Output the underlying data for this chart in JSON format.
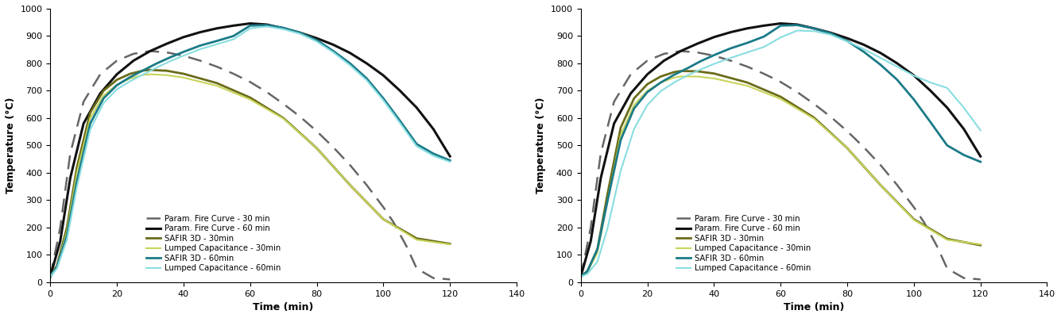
{
  "xlabel": "Time (min)",
  "ylabel": "Temperature (°C)",
  "xlim": [
    0,
    140
  ],
  "ylim": [
    0,
    1000
  ],
  "xticks": [
    0,
    20,
    40,
    60,
    80,
    100,
    120,
    140
  ],
  "yticks": [
    0,
    100,
    200,
    300,
    400,
    500,
    600,
    700,
    800,
    900,
    1000
  ],
  "colors": {
    "param_fire_30": "#666666",
    "param_fire_60": "#111111",
    "safir3d_30": "#6b6b1a",
    "lumped_30": "#c8d45a",
    "safir3d_60": "#1a7a88",
    "lumped_60_left": "#88dde0",
    "lumped_60_right": "#88dde0"
  },
  "legend_labels": [
    "Param. Fire Curve - 30 min",
    "Param. Fire Curve - 60 min",
    "SAFIR 3D - 30min",
    "Lumped Capacitance - 30min",
    "SAFIR 3D - 60min",
    "Lumped Capacitance - 60min"
  ],
  "param_fire_30_t": [
    0,
    3,
    6,
    10,
    15,
    20,
    25,
    30,
    35,
    40,
    45,
    50,
    55,
    60,
    65,
    70,
    75,
    80,
    85,
    90,
    95,
    100,
    103,
    107,
    110,
    115,
    120
  ],
  "param_fire_30_T": [
    20,
    200,
    470,
    660,
    760,
    810,
    835,
    845,
    840,
    828,
    810,
    788,
    762,
    732,
    695,
    652,
    605,
    552,
    493,
    428,
    355,
    274,
    220,
    130,
    50,
    15,
    10
  ],
  "param_fire_60_t": [
    0,
    3,
    6,
    10,
    15,
    20,
    25,
    30,
    35,
    40,
    45,
    50,
    55,
    60,
    65,
    70,
    75,
    80,
    85,
    90,
    95,
    100,
    105,
    110,
    115,
    120
  ],
  "param_fire_60_T": [
    20,
    150,
    380,
    580,
    690,
    760,
    810,
    845,
    872,
    896,
    914,
    928,
    938,
    946,
    942,
    928,
    912,
    892,
    868,
    838,
    800,
    756,
    700,
    638,
    560,
    460
  ],
  "safir3d_30_left_t": [
    0,
    2,
    5,
    8,
    12,
    16,
    20,
    24,
    28,
    30,
    35,
    40,
    50,
    60,
    70,
    80,
    90,
    100,
    110,
    120
  ],
  "safir3d_30_left_T": [
    20,
    60,
    200,
    420,
    620,
    700,
    740,
    762,
    774,
    776,
    773,
    762,
    728,
    675,
    600,
    490,
    355,
    230,
    160,
    140
  ],
  "lumped_30_left_t": [
    0,
    2,
    5,
    8,
    12,
    16,
    20,
    24,
    28,
    30,
    35,
    40,
    50,
    60,
    70,
    80,
    90,
    100,
    110,
    120
  ],
  "lumped_30_left_T": [
    20,
    55,
    185,
    400,
    600,
    682,
    722,
    745,
    758,
    760,
    757,
    748,
    718,
    668,
    598,
    490,
    355,
    230,
    155,
    138
  ],
  "safir3d_60_left_t": [
    0,
    2,
    5,
    8,
    12,
    16,
    20,
    24,
    28,
    32,
    36,
    40,
    45,
    50,
    55,
    60,
    65,
    70,
    75,
    80,
    85,
    90,
    95,
    100,
    105,
    110,
    115,
    120
  ],
  "safir3d_60_left_T": [
    20,
    55,
    170,
    370,
    580,
    672,
    720,
    750,
    775,
    800,
    822,
    842,
    865,
    882,
    900,
    938,
    940,
    930,
    912,
    885,
    845,
    800,
    745,
    672,
    590,
    505,
    470,
    445
  ],
  "lumped_60_left_t": [
    0,
    2,
    5,
    8,
    12,
    16,
    20,
    24,
    28,
    32,
    36,
    40,
    45,
    50,
    55,
    60,
    65,
    70,
    75,
    80,
    85,
    90,
    95,
    100,
    105,
    110,
    115,
    120
  ],
  "lumped_60_left_T": [
    20,
    50,
    155,
    348,
    558,
    655,
    705,
    735,
    760,
    785,
    808,
    828,
    852,
    870,
    888,
    928,
    935,
    925,
    908,
    880,
    840,
    793,
    738,
    665,
    582,
    497,
    462,
    440
  ],
  "safir3d_30_right_t": [
    0,
    2,
    5,
    8,
    12,
    16,
    20,
    24,
    28,
    30,
    35,
    40,
    50,
    60,
    70,
    80,
    90,
    100,
    110,
    120
  ],
  "safir3d_30_right_T": [
    20,
    40,
    120,
    320,
    565,
    672,
    724,
    752,
    768,
    772,
    771,
    763,
    730,
    678,
    602,
    490,
    355,
    230,
    158,
    135
  ],
  "lumped_30_right_t": [
    0,
    2,
    5,
    8,
    12,
    16,
    20,
    24,
    28,
    30,
    35,
    40,
    50,
    60,
    70,
    80,
    90,
    100,
    110,
    120
  ],
  "lumped_30_right_T": [
    20,
    38,
    108,
    295,
    538,
    648,
    700,
    730,
    748,
    752,
    752,
    745,
    718,
    670,
    598,
    490,
    355,
    228,
    155,
    138
  ],
  "safir3d_60_right_t": [
    0,
    2,
    5,
    8,
    12,
    16,
    20,
    24,
    28,
    32,
    36,
    40,
    45,
    50,
    55,
    60,
    65,
    70,
    75,
    80,
    85,
    90,
    95,
    100,
    105,
    110,
    115,
    120
  ],
  "safir3d_60_right_T": [
    20,
    40,
    120,
    295,
    520,
    635,
    695,
    730,
    758,
    782,
    808,
    830,
    855,
    875,
    898,
    938,
    940,
    928,
    910,
    882,
    842,
    795,
    740,
    668,
    585,
    500,
    465,
    440
  ],
  "lumped_60_right_t": [
    0,
    2,
    5,
    8,
    12,
    16,
    20,
    24,
    28,
    32,
    36,
    40,
    45,
    50,
    55,
    60,
    65,
    70,
    75,
    80,
    85,
    90,
    95,
    100,
    105,
    110,
    115,
    120
  ],
  "lumped_60_right_T": [
    20,
    30,
    75,
    195,
    408,
    560,
    648,
    698,
    730,
    756,
    778,
    798,
    820,
    840,
    860,
    895,
    920,
    918,
    905,
    880,
    852,
    820,
    788,
    755,
    730,
    710,
    638,
    555
  ]
}
